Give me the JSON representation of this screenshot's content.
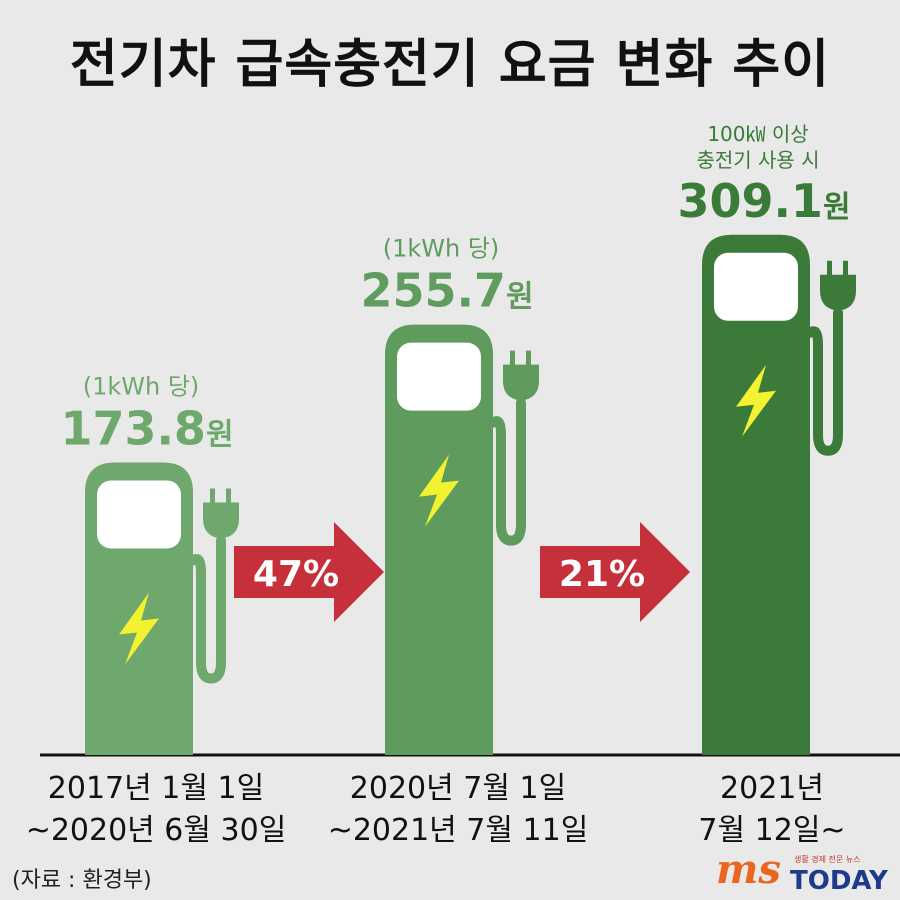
{
  "title": "전기차 급속충전기 요금 변화 추이",
  "chart_data": {
    "type": "bar",
    "unit": "원",
    "categories": [
      [
        "2017년 1월 1일",
        "~2020년 6월 30일"
      ],
      [
        "2020년 7월 1일",
        "~2021년 7월 11일"
      ],
      [
        "2021년",
        "7월 12일~"
      ]
    ],
    "values": [
      173.8,
      255.7,
      309.1
    ],
    "value_labels": [
      "173.8",
      "255.7",
      "309.1"
    ],
    "notes": [
      [
        "(1kWh 당)"
      ],
      [
        "(1kWh 당)"
      ],
      [
        "100㎾ 이상",
        "충전기 사용 시"
      ]
    ],
    "changes": [
      "47%",
      "21%"
    ],
    "colors": [
      "#6ea86c",
      "#5e9b5c",
      "#3c7a3a"
    ],
    "label_colors": [
      "#6fa86c",
      "#5f9c5d",
      "#3b7b39"
    ],
    "arrow_color": "#c5303a",
    "bolt_color": "#f2f230"
  },
  "source": "(자료 : 환경부)",
  "logo": {
    "brand": "ms",
    "name": "TODAY",
    "tagline": "생활 경제 전문 뉴스"
  }
}
